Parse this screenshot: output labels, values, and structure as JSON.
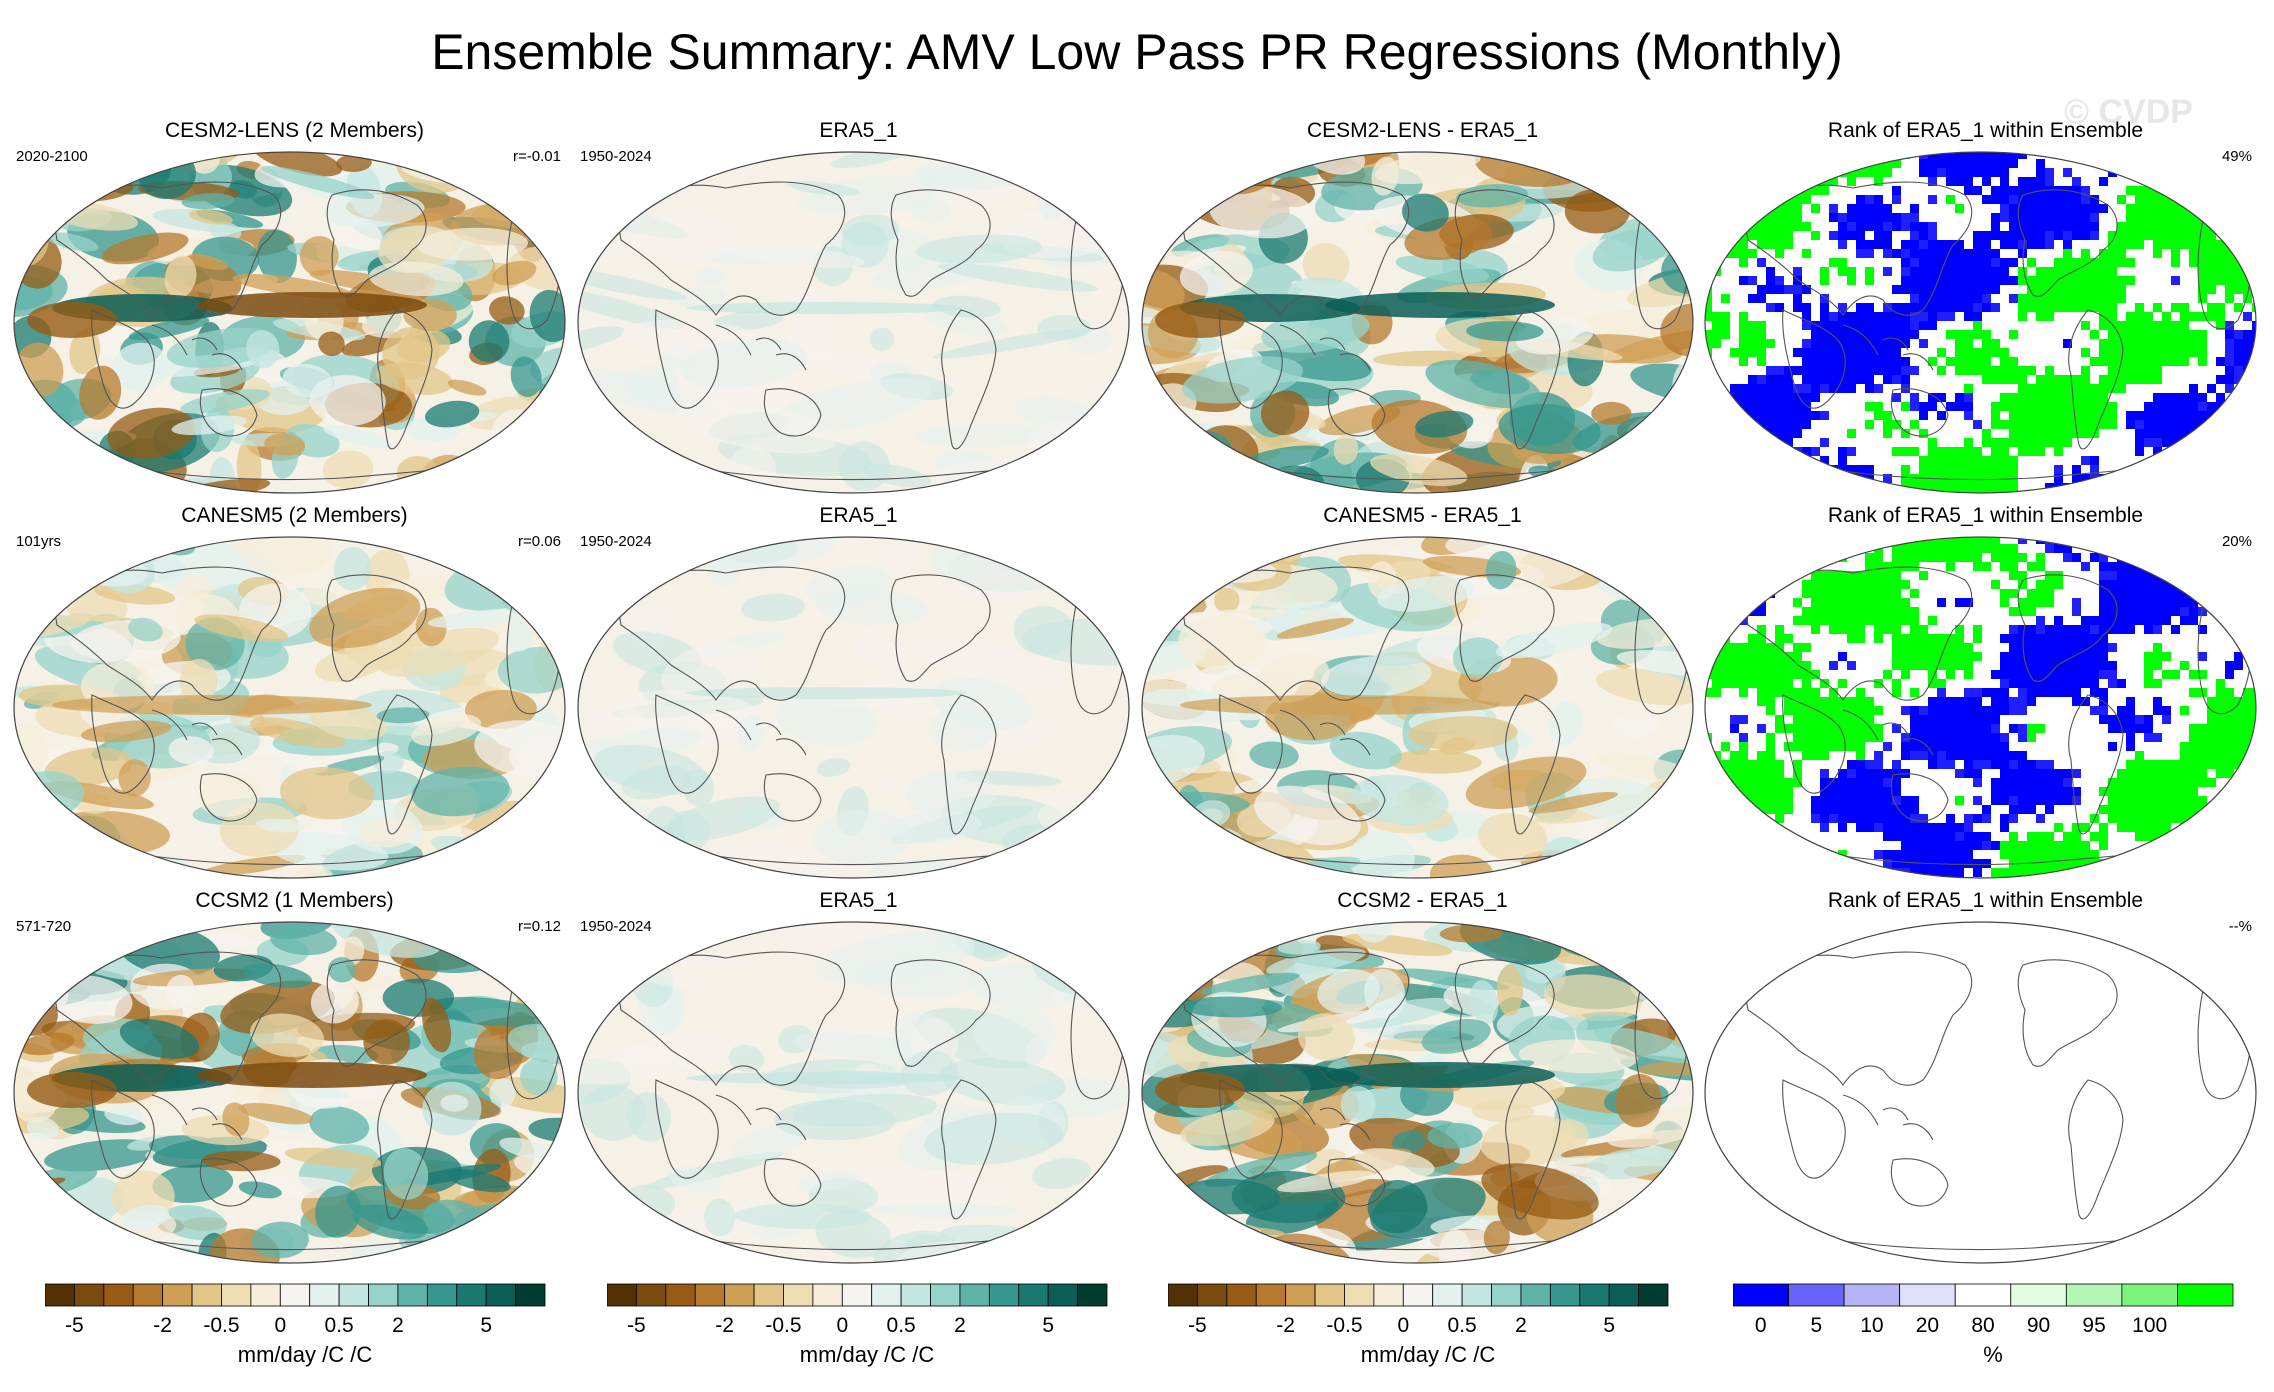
{
  "title": "Ensemble Summary: AMV Low Pass PR Regressions (Monthly)",
  "watermark": "© CVDP",
  "chart_data": {
    "type": "heatmap",
    "map_projection": "Robinson (Pacific-centered)",
    "variable": "PR regressions on AMV (low pass)",
    "rows": [
      {
        "panels": [
          {
            "kind": "model",
            "title": "CESM2-LENS (2 Members)",
            "left_note": "2020-2100",
            "right_note": "r=-0.01",
            "amplitude": "strong"
          },
          {
            "kind": "obs",
            "title": "ERA5_1",
            "left_note": "1950-2024",
            "right_note": "",
            "amplitude": "weak"
          },
          {
            "kind": "diff",
            "title": "CESM2-LENS - ERA5_1",
            "left_note": "",
            "right_note": "",
            "amplitude": "strong"
          },
          {
            "kind": "rank",
            "title": "Rank of ERA5_1 within Ensemble",
            "left_note": "",
            "right_note": "49%",
            "amplitude": "rank"
          }
        ]
      },
      {
        "panels": [
          {
            "kind": "model",
            "title": "CANESM5 (2 Members)",
            "left_note": "101yrs",
            "right_note": "r=0.06",
            "amplitude": "moderate"
          },
          {
            "kind": "obs",
            "title": "ERA5_1",
            "left_note": "1950-2024",
            "right_note": "",
            "amplitude": "weak"
          },
          {
            "kind": "diff",
            "title": "CANESM5 - ERA5_1",
            "left_note": "",
            "right_note": "",
            "amplitude": "moderate"
          },
          {
            "kind": "rank",
            "title": "Rank of ERA5_1 within Ensemble",
            "left_note": "",
            "right_note": "20%",
            "amplitude": "rank"
          }
        ]
      },
      {
        "panels": [
          {
            "kind": "model",
            "title": "CCSM2 (1 Members)",
            "left_note": "571-720",
            "right_note": "r=0.12",
            "amplitude": "strong"
          },
          {
            "kind": "obs",
            "title": "ERA5_1",
            "left_note": "1950-2024",
            "right_note": "",
            "amplitude": "weak"
          },
          {
            "kind": "diff",
            "title": "CCSM2 - ERA5_1",
            "left_note": "",
            "right_note": "",
            "amplitude": "strong"
          },
          {
            "kind": "rank",
            "title": "Rank of ERA5_1 within Ensemble",
            "left_note": "",
            "right_note": "--%",
            "amplitude": "empty"
          }
        ]
      }
    ],
    "colorbars": [
      {
        "units": "mm/day /C /C",
        "levels": [
          -5,
          -4,
          -3,
          -2,
          -1,
          -0.5,
          -0.25,
          0,
          0.25,
          0.5,
          1,
          2,
          3,
          4,
          5
        ],
        "tick_labels": [
          "-5",
          "-2",
          "-0.5",
          "0",
          "0.5",
          "2",
          "5"
        ],
        "tick_levels": [
          -5,
          -2,
          -0.5,
          0,
          0.5,
          2,
          5
        ],
        "colors": [
          "#543005",
          "#7b4a0e",
          "#965b14",
          "#b57a2e",
          "#cf9f55",
          "#e1c687",
          "#eedcb3",
          "#f6eedb",
          "#f5f3ef",
          "#e3f1ef",
          "#c4e6e0",
          "#96d3c9",
          "#5fb3a8",
          "#35978f",
          "#1a7a72",
          "#0b5e56",
          "#003c30"
        ]
      },
      {
        "units": "%",
        "levels": [
          0,
          5,
          10,
          20,
          80,
          90,
          95,
          100
        ],
        "tick_labels": [
          "0",
          "5",
          "10",
          "20",
          "80",
          "90",
          "95",
          "100"
        ],
        "tick_levels": [
          0,
          5,
          10,
          20,
          80,
          90,
          95,
          100
        ],
        "colors": [
          "#0000ff",
          "#6666ff",
          "#b3b3f5",
          "#e0e0fa",
          "#ffffff",
          "#e3fde3",
          "#b4f7b4",
          "#7cf37c",
          "#00ff00"
        ]
      }
    ]
  }
}
